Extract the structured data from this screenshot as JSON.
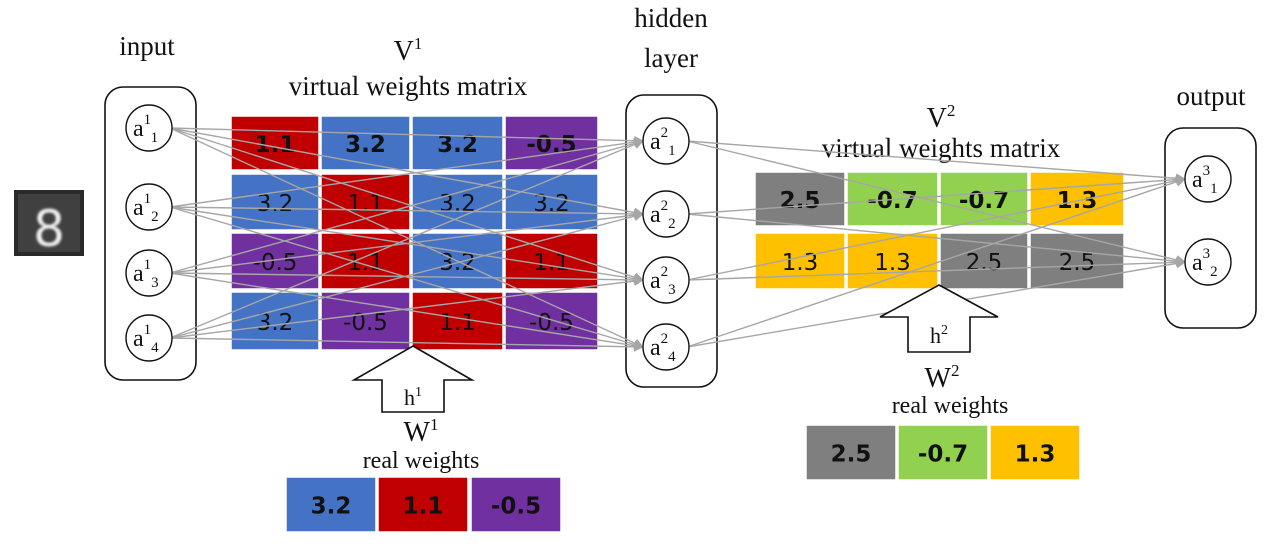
{
  "labels": {
    "input": "input",
    "hidden_line1": "hidden",
    "hidden_line2": "layer",
    "output": "output",
    "v1": "V",
    "v1_sup": "1",
    "v1_sub": "virtual weights matrix",
    "v2": "V",
    "v2_sup": "2",
    "v2_sub": "virtual weights matrix",
    "h1": "h",
    "h1_sup": "1",
    "h2": "h",
    "h2_sup": "2",
    "w1": "W",
    "w1_sup": "1",
    "w1_sub": "real weights",
    "w2": "W",
    "w2_sup": "2",
    "w2_sub": "real weights"
  },
  "input_image": {
    "digit": "8"
  },
  "nodes": {
    "input": [
      {
        "base": "a",
        "sup": "1",
        "sub": "1"
      },
      {
        "base": "a",
        "sup": "1",
        "sub": "2"
      },
      {
        "base": "a",
        "sup": "1",
        "sub": "3"
      },
      {
        "base": "a",
        "sup": "1",
        "sub": "4"
      }
    ],
    "hidden": [
      {
        "base": "a",
        "sup": "2",
        "sub": "1"
      },
      {
        "base": "a",
        "sup": "2",
        "sub": "2"
      },
      {
        "base": "a",
        "sup": "2",
        "sub": "3"
      },
      {
        "base": "a",
        "sup": "2",
        "sub": "4"
      }
    ],
    "output": [
      {
        "base": "a",
        "sup": "3",
        "sub": "1"
      },
      {
        "base": "a",
        "sup": "3",
        "sub": "2"
      }
    ]
  },
  "colors": {
    "blue": "#4472c4",
    "red": "#c00000",
    "purple": "#7030a0",
    "gray": "#7f7f7f",
    "green": "#92d050",
    "yellow": "#ffc000",
    "connection": "#a6a6a6"
  },
  "v1_matrix": [
    [
      {
        "v": "1.1",
        "c": "red",
        "b": true
      },
      {
        "v": "3.2",
        "c": "blue",
        "b": true
      },
      {
        "v": "3.2",
        "c": "blue",
        "b": true
      },
      {
        "v": "-0.5",
        "c": "purple",
        "b": true
      }
    ],
    [
      {
        "v": "3.2",
        "c": "blue",
        "b": false
      },
      {
        "v": "1.1",
        "c": "red",
        "b": false
      },
      {
        "v": "3.2",
        "c": "blue",
        "b": false
      },
      {
        "v": "3.2",
        "c": "blue",
        "b": false
      }
    ],
    [
      {
        "v": "-0.5",
        "c": "purple",
        "b": false
      },
      {
        "v": "1.1",
        "c": "red",
        "b": false
      },
      {
        "v": "3.2",
        "c": "blue",
        "b": false
      },
      {
        "v": "1.1",
        "c": "red",
        "b": false
      }
    ],
    [
      {
        "v": "3.2",
        "c": "blue",
        "b": false
      },
      {
        "v": "-0.5",
        "c": "purple",
        "b": false
      },
      {
        "v": "1.1",
        "c": "red",
        "b": false
      },
      {
        "v": "-0.5",
        "c": "purple",
        "b": false
      }
    ]
  ],
  "v2_matrix": [
    [
      {
        "v": "2.5",
        "c": "gray",
        "b": true
      },
      {
        "v": "-0.7",
        "c": "green",
        "b": true
      },
      {
        "v": "-0.7",
        "c": "green",
        "b": true
      },
      {
        "v": "1.3",
        "c": "yellow",
        "b": true
      }
    ],
    [
      {
        "v": "1.3",
        "c": "yellow",
        "b": false
      },
      {
        "v": "1.3",
        "c": "yellow",
        "b": false
      },
      {
        "v": "2.5",
        "c": "gray",
        "b": false
      },
      {
        "v": "2.5",
        "c": "gray",
        "b": false
      }
    ]
  ],
  "w1_weights": [
    {
      "v": "3.2",
      "c": "blue"
    },
    {
      "v": "1.1",
      "c": "red"
    },
    {
      "v": "-0.5",
      "c": "purple"
    }
  ],
  "w2_weights": [
    {
      "v": "2.5",
      "c": "gray"
    },
    {
      "v": "-0.7",
      "c": "green"
    },
    {
      "v": "1.3",
      "c": "yellow"
    }
  ]
}
